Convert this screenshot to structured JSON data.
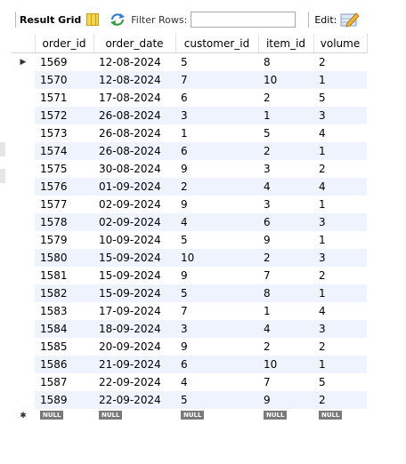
{
  "toolbar": {
    "result_grid_label": "Result Grid",
    "filter_label": "Filter Rows:",
    "filter_value": "",
    "edit_label": "Edit:"
  },
  "grid": {
    "columns": [
      "order_id",
      "order_date",
      "customer_id",
      "item_id",
      "volume"
    ],
    "current_row_marker": "▶",
    "new_row_marker": "✱",
    "null_label": "NULL",
    "rows": [
      [
        "1569",
        "12-08-2024",
        "5",
        "8",
        "2"
      ],
      [
        "1570",
        "12-08-2024",
        "7",
        "10",
        "1"
      ],
      [
        "1571",
        "17-08-2024",
        "6",
        "2",
        "5"
      ],
      [
        "1572",
        "26-08-2024",
        "3",
        "1",
        "3"
      ],
      [
        "1573",
        "26-08-2024",
        "1",
        "5",
        "4"
      ],
      [
        "1574",
        "26-08-2024",
        "6",
        "2",
        "1"
      ],
      [
        "1575",
        "30-08-2024",
        "9",
        "3",
        "2"
      ],
      [
        "1576",
        "01-09-2024",
        "2",
        "4",
        "4"
      ],
      [
        "1577",
        "02-09-2024",
        "9",
        "3",
        "1"
      ],
      [
        "1578",
        "02-09-2024",
        "4",
        "6",
        "3"
      ],
      [
        "1579",
        "10-09-2024",
        "5",
        "9",
        "1"
      ],
      [
        "1580",
        "15-09-2024",
        "10",
        "2",
        "3"
      ],
      [
        "1581",
        "15-09-2024",
        "9",
        "7",
        "2"
      ],
      [
        "1582",
        "15-09-2024",
        "5",
        "8",
        "1"
      ],
      [
        "1583",
        "17-09-2024",
        "7",
        "1",
        "4"
      ],
      [
        "1584",
        "18-09-2024",
        "3",
        "4",
        "3"
      ],
      [
        "1585",
        "20-09-2024",
        "9",
        "2",
        "2"
      ],
      [
        "1586",
        "21-09-2024",
        "6",
        "10",
        "1"
      ],
      [
        "1587",
        "22-09-2024",
        "4",
        "7",
        "5"
      ],
      [
        "1589",
        "22-09-2024",
        "5",
        "9",
        "2"
      ]
    ]
  },
  "colors": {
    "row_stripe": "#eef3fd",
    "null_badge": "#7a7a7a"
  }
}
